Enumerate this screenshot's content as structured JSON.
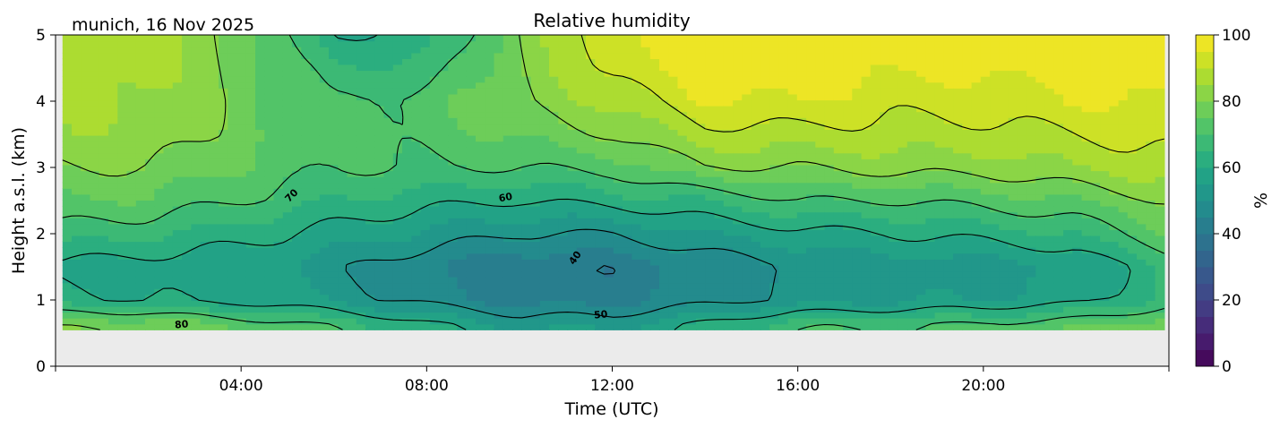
{
  "chart_data": {
    "type": "heatmap",
    "subtype": "filled-contour",
    "title": "Relative humidity",
    "subtitle": "munich, 16 Nov 2025",
    "xlabel": "Time (UTC)",
    "ylabel": "Height a.s.l. (km)",
    "xlim": [
      0,
      24
    ],
    "ylim": [
      0,
      5
    ],
    "x_ticks": [
      0,
      4,
      8,
      12,
      16,
      20,
      24
    ],
    "x_tick_labels": [
      "",
      "04:00",
      "08:00",
      "12:00",
      "16:00",
      "20:00",
      ""
    ],
    "y_ticks": [
      0,
      1,
      2,
      3,
      4,
      5
    ],
    "y_tick_labels": [
      "0",
      "1",
      "2",
      "3",
      "4",
      "5"
    ],
    "colorbar": {
      "label": "%",
      "range": [
        0,
        100
      ],
      "level_step": 5,
      "colormap": "viridis",
      "ticks": [
        0,
        20,
        40,
        60,
        80,
        100
      ],
      "tick_labels": [
        "0",
        "20",
        "40",
        "60",
        "80",
        "100"
      ]
    },
    "contour_levels": [
      40,
      50,
      60,
      70,
      80,
      90
    ],
    "contour_labels": [
      "80",
      "70",
      "60",
      "50",
      "40"
    ],
    "missing_color": "#ebebeb",
    "data_time_range_h": [
      0.15,
      23.9
    ],
    "data_height_range_km": [
      0.55,
      5
    ],
    "times_h": [
      0,
      2,
      4,
      6,
      8,
      10,
      12,
      14,
      16,
      18,
      20,
      22,
      24
    ],
    "heights_km": [
      0.6,
      1.0,
      1.5,
      2.0,
      2.5,
      3.0,
      3.5,
      4.0,
      4.5,
      5.0
    ],
    "rh_percent": [
      [
        80,
        62,
        58,
        68,
        75,
        80,
        84,
        85,
        86,
        86
      ],
      [
        80,
        60,
        57,
        66,
        74,
        80,
        84,
        86,
        87,
        88
      ],
      [
        75,
        58,
        56,
        62,
        70,
        75,
        77,
        78,
        78,
        78
      ],
      [
        70,
        54,
        52,
        58,
        65,
        70,
        70,
        70,
        66,
        60
      ],
      [
        62,
        48,
        45,
        54,
        62,
        70,
        72,
        72,
        66,
        62
      ],
      [
        55,
        43,
        41,
        50,
        60,
        70,
        76,
        80,
        80,
        80
      ],
      [
        55,
        43,
        41,
        50,
        62,
        72,
        80,
        86,
        92,
        95
      ],
      [
        62,
        48,
        46,
        55,
        65,
        80,
        88,
        95,
        98,
        98
      ],
      [
        70,
        52,
        50,
        58,
        70,
        80,
        88,
        95,
        98,
        98
      ],
      [
        70,
        54,
        52,
        60,
        70,
        82,
        88,
        92,
        96,
        98
      ],
      [
        72,
        55,
        52,
        62,
        72,
        82,
        88,
        92,
        96,
        98
      ],
      [
        75,
        58,
        55,
        65,
        75,
        85,
        90,
        95,
        98,
        98
      ],
      [
        80,
        66,
        65,
        75,
        80,
        88,
        92,
        95,
        98,
        98
      ]
    ]
  }
}
